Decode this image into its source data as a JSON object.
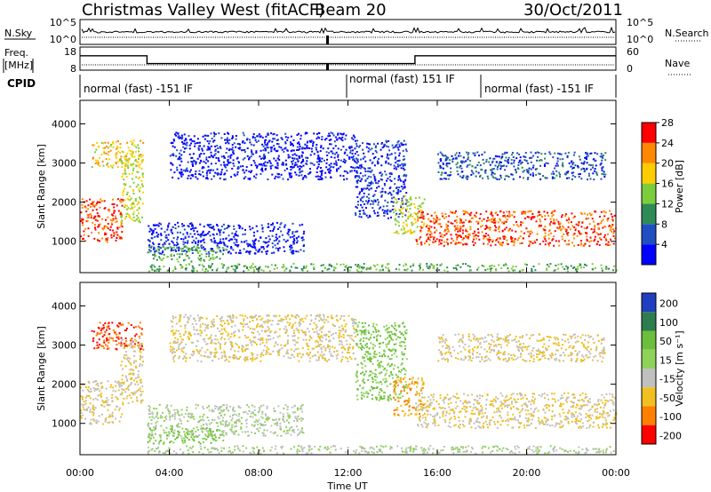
{
  "header": {
    "station": "Christmas Valley West (fitACF)",
    "beam": "Beam 20",
    "date": "30/Oct/2011"
  },
  "noise_panel": {
    "left_label": "N.Sky",
    "right_label": "N.Search",
    "left_ticks": [
      "10^5",
      "10^0"
    ],
    "right_ticks": [
      "10^5",
      "10^0"
    ]
  },
  "freq_panel": {
    "left_label_1": "Freq.",
    "left_label_2": "[MHz]",
    "right_label": "Nave",
    "left_ticks": [
      "18",
      "8"
    ],
    "right_ticks": [
      "60",
      "0"
    ]
  },
  "cpid_panel": {
    "label": "CPID",
    "segments": [
      "normal (fast) -151 IF",
      "normal (fast) 151 IF",
      "normal (fast) -151 IF"
    ],
    "boundaries_hours": [
      0,
      12,
      18,
      24
    ]
  },
  "time_axis": {
    "label": "Time UT",
    "ticks": [
      "00:00",
      "04:00",
      "08:00",
      "12:00",
      "16:00",
      "20:00",
      "00:00"
    ]
  },
  "power_panel": {
    "ylabel": "Slant Range [km]",
    "yticks": [
      "1000",
      "2000",
      "3000",
      "4000"
    ],
    "cbar_label": "Power [dB]",
    "cbar_ticks": [
      "4",
      "8",
      "12",
      "16",
      "20",
      "24",
      "28"
    ]
  },
  "velocity_panel": {
    "ylabel": "Slant Range [km]",
    "yticks": [
      "1000",
      "2000",
      "3000",
      "4000"
    ],
    "cbar_label": "Velocity [m s⁻¹]",
    "cbar_ticks": [
      "200",
      "100",
      "50",
      "15",
      "-15",
      "-50",
      "-100",
      "-200"
    ]
  },
  "chart_data": {
    "type": "heatmap",
    "title": "Christmas Valley West (fitACF) Beam 20 30/Oct/2011",
    "xlabel": "Time UT",
    "ylabel": "Slant Range [km]",
    "xlim_hours": [
      0,
      24
    ],
    "ylim_km": [
      200,
      4600
    ],
    "power_colorscale_db": {
      "levels": [
        4,
        8,
        12,
        16,
        20,
        24,
        28
      ],
      "colors": [
        "#0000ff",
        "#1f4fc0",
        "#2e8b57",
        "#7ccd3c",
        "#ffcc00",
        "#ff8800",
        "#ff0000"
      ]
    },
    "velocity_colorscale_ms": {
      "levels": [
        200,
        100,
        50,
        15,
        -15,
        -50,
        -100,
        -200
      ],
      "colors": [
        "#1f3fc0",
        "#2e7d4f",
        "#6cbf3c",
        "#8fd25a",
        "#c0c0c0",
        "#f0c020",
        "#ff8000",
        "#ff0000"
      ]
    },
    "echo_regions": [
      {
        "name": "early-dense",
        "t": [
          0.0,
          1.9
        ],
        "r": [
          1000,
          2100
        ],
        "power": 28,
        "velocity": -15
      },
      {
        "name": "early-high",
        "t": [
          0.5,
          2.8
        ],
        "r": [
          2900,
          3600
        ],
        "power": 22,
        "velocity": -100
      },
      {
        "name": "early-rising",
        "t": [
          1.8,
          2.8
        ],
        "r": [
          1500,
          3200
        ],
        "power": 20,
        "velocity": -15
      },
      {
        "name": "morning-band",
        "t": [
          3.0,
          10.0
        ],
        "r": [
          700,
          1500
        ],
        "power": 7,
        "velocity": 15
      },
      {
        "name": "morning-lower",
        "t": [
          3.0,
          6.5
        ],
        "r": [
          500,
          900
        ],
        "power": 16,
        "velocity": 50
      },
      {
        "name": "morning-arc",
        "t": [
          4.0,
          12.3
        ],
        "r": [
          2600,
          3800
        ],
        "power": 6,
        "velocity": -15
      },
      {
        "name": "noon-descent",
        "t": [
          12.3,
          14.6
        ],
        "r": [
          1600,
          3600
        ],
        "power": 8,
        "velocity": 50
      },
      {
        "name": "afternoon-mixed",
        "t": [
          14.0,
          15.4
        ],
        "r": [
          1200,
          2200
        ],
        "power": 20,
        "velocity": -50
      },
      {
        "name": "afternoon-dense",
        "t": [
          15.0,
          24.0
        ],
        "r": [
          900,
          1800
        ],
        "power": 28,
        "velocity": -15
      },
      {
        "name": "evening-upper",
        "t": [
          16.0,
          23.5
        ],
        "r": [
          2600,
          3300
        ],
        "power": 10,
        "velocity": -15
      },
      {
        "name": "ground-scatter",
        "t": [
          3.0,
          24.0
        ],
        "r": [
          250,
          450
        ],
        "power": 16,
        "velocity": 15
      }
    ],
    "freq_mhz": {
      "segments": [
        [
          0,
          3.0,
          14.6
        ],
        [
          3.0,
          15.0,
          10.2
        ],
        [
          15.0,
          24.0,
          14.6
        ]
      ]
    },
    "nave": 12
  }
}
